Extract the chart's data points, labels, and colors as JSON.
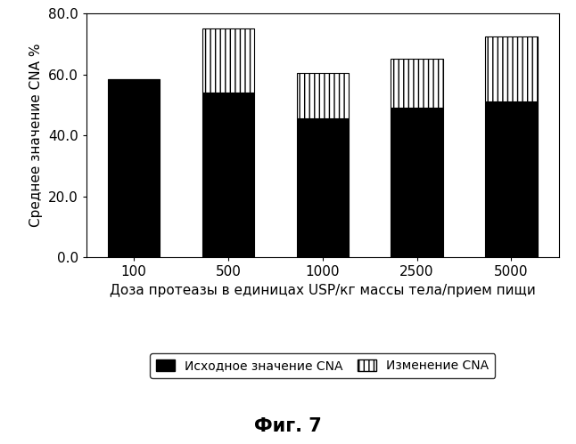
{
  "categories": [
    "100",
    "500",
    "1000",
    "2500",
    "5000"
  ],
  "baseline": [
    58.5,
    54.0,
    45.5,
    49.0,
    51.0
  ],
  "change": [
    0.0,
    21.0,
    15.0,
    16.0,
    21.5
  ],
  "bar_color_black": "#000000",
  "bar_color_hatch": "#ffffff",
  "hatch_pattern": "|||",
  "ylabel": "Среднее значение CNA %",
  "xlabel": "Доза протеазы в единицах USP/кг массы тела/прием пищи",
  "ylim": [
    0.0,
    80.0
  ],
  "yticks": [
    0.0,
    20.0,
    40.0,
    60.0,
    80.0
  ],
  "legend_label1": "Исходное значение CNA",
  "legend_label2": "Изменение CNA",
  "figure_title": "Фиг. 7",
  "background_color": "#ffffff",
  "bar_width": 0.55
}
